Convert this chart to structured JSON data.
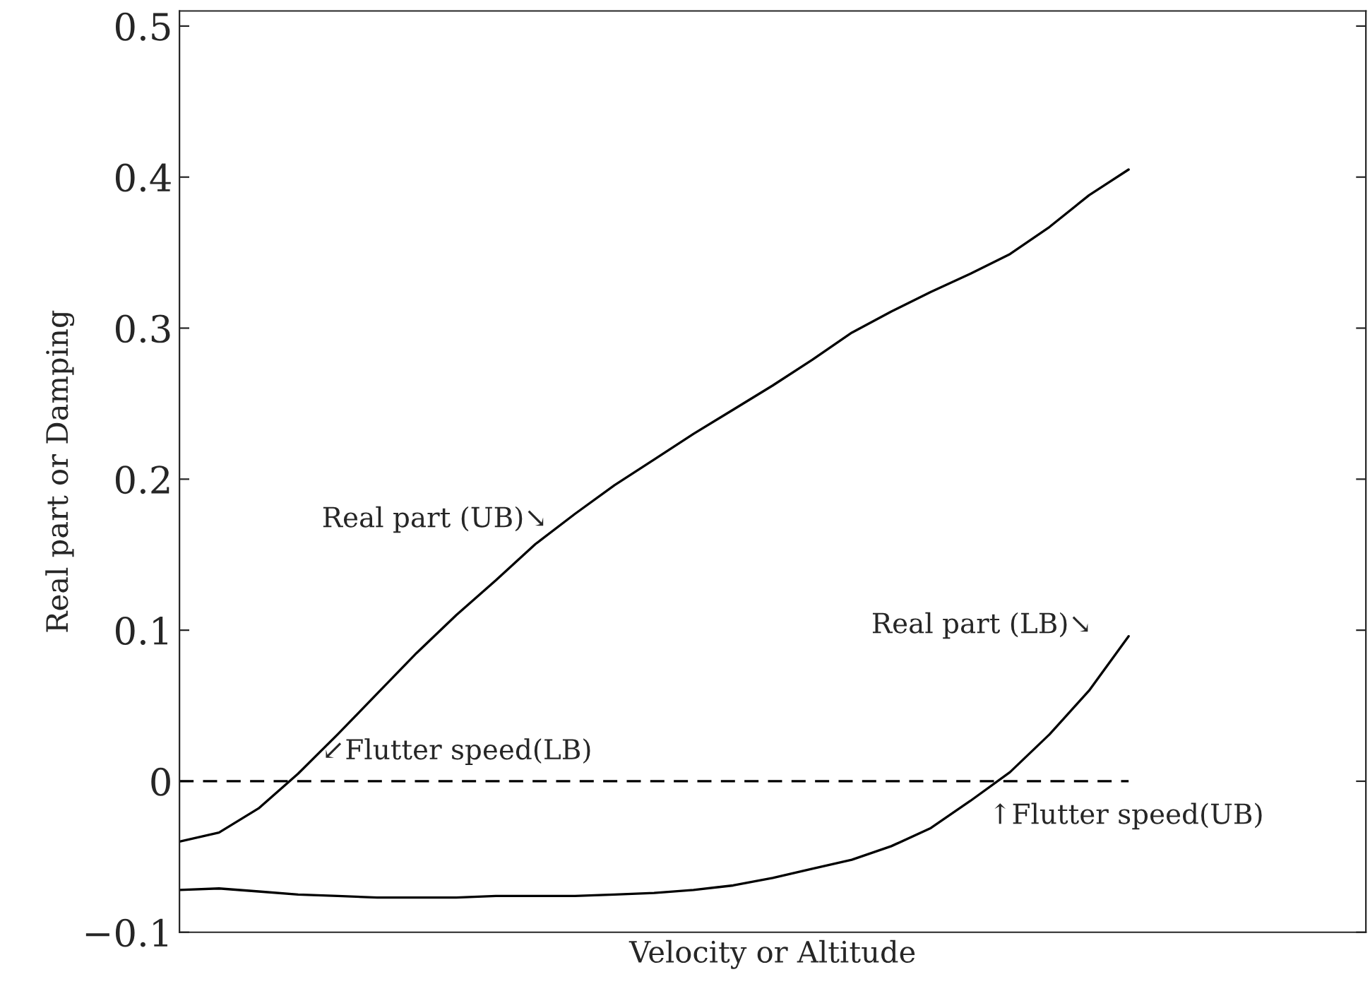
{
  "chart_data": {
    "type": "line",
    "xlabel": "Velocity or Altitude",
    "ylabel": "Real part or Damping",
    "categories": [
      null,
      null,
      null,
      null,
      null,
      null,
      null,
      null,
      null,
      null,
      null,
      null,
      null,
      null,
      null,
      null,
      null,
      null,
      null,
      null,
      null,
      null,
      null,
      null,
      null,
      null,
      null,
      null,
      null,
      null,
      null
    ],
    "ylim": [
      -0.1,
      0.51
    ],
    "yticks": [
      {
        "value": -0.1,
        "label": "−0.1"
      },
      0,
      0.1,
      0.2,
      0.3,
      0.4,
      0.5
    ],
    "tick_labels": "y",
    "marker": "none",
    "series": [
      {
        "color": "#000000",
        "line_style": "solid",
        "values": [
          -0.04,
          -0.034,
          -0.018,
          0.005,
          0.031,
          0.058,
          0.085,
          0.11,
          0.133,
          0.157,
          0.177,
          0.196,
          0.213,
          0.23,
          0.246,
          0.262,
          0.279,
          0.297,
          0.311,
          0.324,
          0.336,
          0.349,
          0.367,
          0.388,
          0.405,
          null,
          null,
          null,
          null,
          null,
          null
        ]
      },
      {
        "color": "#000000",
        "line_style": "solid",
        "values": [
          -0.072,
          -0.071,
          -0.073,
          -0.075,
          -0.076,
          -0.077,
          -0.077,
          -0.077,
          -0.076,
          -0.076,
          -0.076,
          -0.075,
          -0.074,
          -0.072,
          -0.069,
          -0.064,
          -0.058,
          -0.052,
          -0.043,
          -0.031,
          -0.013,
          0.006,
          0.031,
          0.06,
          0.096,
          null,
          null,
          null,
          null,
          null,
          null
        ]
      },
      {
        "color": "#000000",
        "line_style": "dashed",
        "values": [
          0,
          0,
          0,
          0,
          0,
          0,
          0,
          0,
          0,
          0,
          0,
          0,
          0,
          0,
          0,
          0,
          0,
          0,
          0,
          0,
          0,
          0,
          0,
          0,
          0,
          null,
          null,
          null,
          null,
          null,
          null
        ]
      }
    ],
    "annotations": [
      "Real part (UB)↘",
      "Real part (LB)↘",
      "↙Flutter speed(LB)",
      "↑Flutter speed(UB)"
    ]
  }
}
